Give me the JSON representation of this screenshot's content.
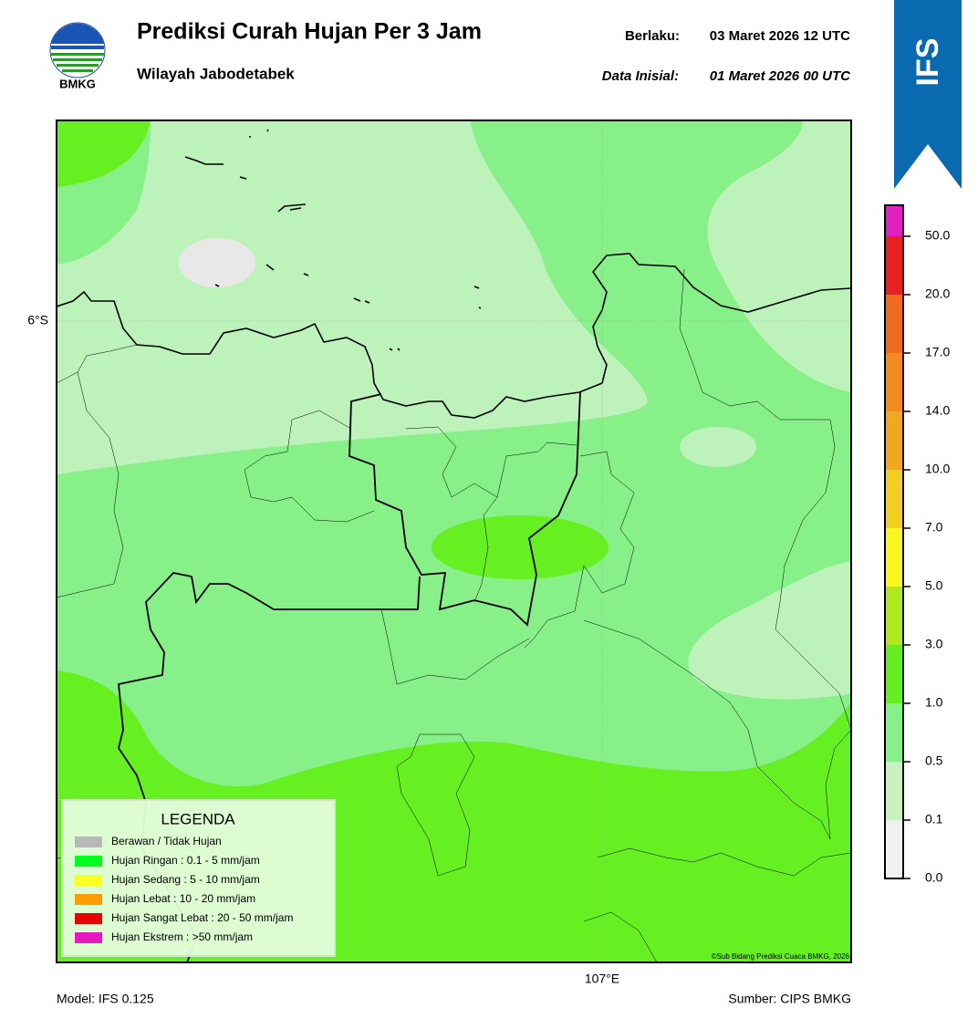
{
  "header": {
    "logo_text": "BMKG",
    "title": "Prediksi Curah Hujan Per 3 Jam",
    "subtitle": "Wilayah Jabodetabek",
    "valid_label": "Berlaku:",
    "valid_time": "03 Maret 2026 12 UTC",
    "init_label": "Data Inisial:",
    "init_time": "01 Maret 2026 00 UTC",
    "badge": "IFS"
  },
  "map": {
    "lat_label": "6°S",
    "lon_label": "107°E",
    "credit": "©Sub Bidang Prediksi Cuaca BMKG, 2026"
  },
  "legend": {
    "title": "LEGENDA",
    "items": [
      {
        "label": "Berawan / Tidak Hujan",
        "color": "#b8b8b8"
      },
      {
        "label": "Hujan Ringan : 0.1 - 5 mm/jam",
        "color": "#00ff20"
      },
      {
        "label": "Hujan Sedang : 5 - 10 mm/jam",
        "color": "#f8ff20"
      },
      {
        "label": "Hujan Lebat : 10 - 20 mm/jam",
        "color": "#ff9c00"
      },
      {
        "label": "Hujan Sangat Lebat : 20 - 50 mm/jam",
        "color": "#e80000"
      },
      {
        "label": "Hujan Ekstrem : >50 mm/jam",
        "color": "#e818c0"
      }
    ]
  },
  "colorbar": {
    "ticks": [
      {
        "value": 0,
        "label": "0.0"
      },
      {
        "value": 0.1,
        "label": "0.1"
      },
      {
        "value": 0.5,
        "label": "0.5"
      },
      {
        "value": 1,
        "label": "1.0"
      },
      {
        "value": 3,
        "label": "3.0"
      },
      {
        "value": 5,
        "label": "5.0"
      },
      {
        "value": 7,
        "label": "7.0"
      },
      {
        "value": 10,
        "label": "10.0"
      },
      {
        "value": 14,
        "label": "14.0"
      },
      {
        "value": 17,
        "label": "17.0"
      },
      {
        "value": 20,
        "label": "20.0"
      },
      {
        "value": 50,
        "label": "50.0"
      }
    ],
    "colors": [
      "#f0f0f0",
      "#c8f2c0",
      "#88f088",
      "#66ee22",
      "#b0e820",
      "#f8f820",
      "#f0d020",
      "#f0a820",
      "#f08c20",
      "#f06a20",
      "#e82020",
      "#e020c0"
    ]
  },
  "footer": {
    "model": "Model: IFS 0.125",
    "source": "Sumber: CIPS BMKG"
  }
}
